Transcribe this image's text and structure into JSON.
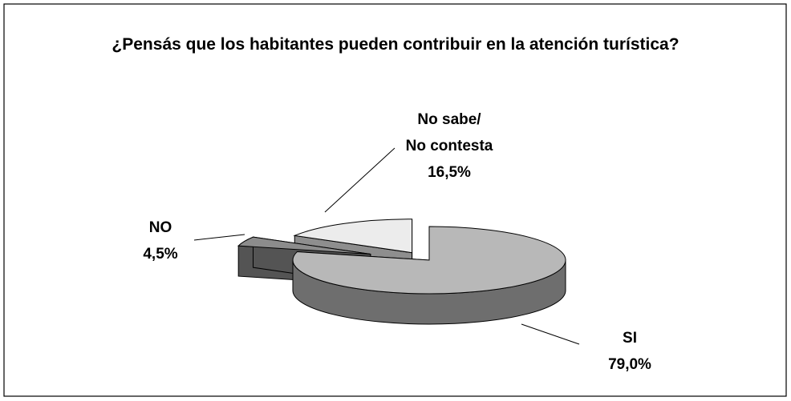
{
  "chart_data": {
    "type": "pie3d",
    "title": "¿Pensás que los habitantes pueden contribuir en la atención turística?",
    "categories": [
      "SI",
      "NO",
      "No sabe/No contesta"
    ],
    "values": [
      79.0,
      4.5,
      16.5
    ],
    "value_labels": [
      "79,0%",
      "4,5%",
      "16,5%"
    ],
    "colors": [
      "#b8b8b8",
      "#8c8c8c",
      "#ececec"
    ]
  }
}
